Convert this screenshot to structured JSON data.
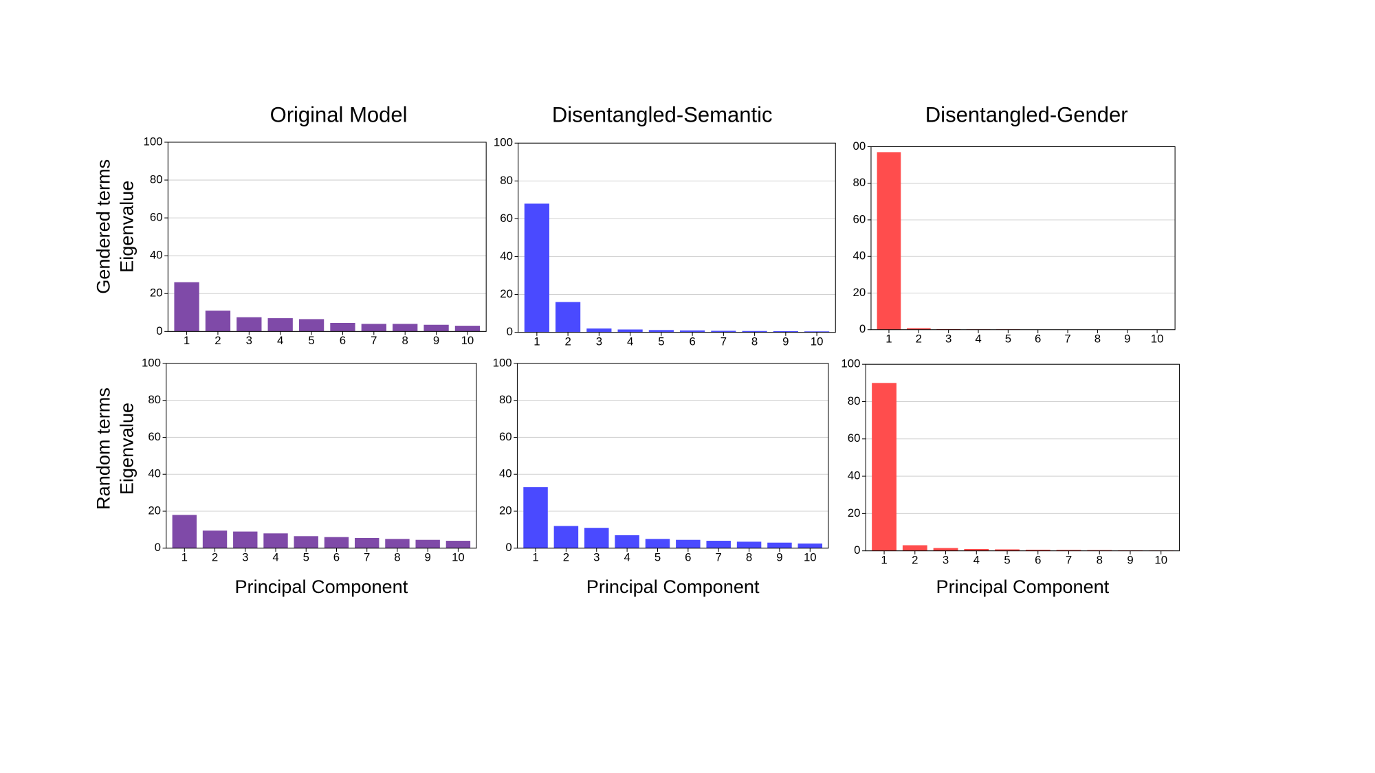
{
  "chart_data": [
    {
      "type": "bar",
      "title": "Original Model",
      "row_label": "Gendered terms",
      "y_label": "Eigenvalue",
      "categories": [
        "1",
        "2",
        "3",
        "4",
        "5",
        "6",
        "7",
        "8",
        "9",
        "10"
      ],
      "values": [
        26,
        11,
        7.5,
        7,
        6.5,
        4.5,
        4,
        4,
        3.5,
        3
      ],
      "color": "#7f4aa8",
      "ylim": [
        0,
        100
      ],
      "yticks": [
        0,
        20,
        40,
        60,
        80,
        100
      ],
      "grid": true
    },
    {
      "type": "bar",
      "title": "Disentangled-Semantic",
      "categories": [
        "1",
        "2",
        "3",
        "4",
        "5",
        "6",
        "7",
        "8",
        "9",
        "10"
      ],
      "values": [
        68,
        16,
        2,
        1.5,
        1.2,
        1,
        0.8,
        0.7,
        0.6,
        0.5
      ],
      "color": "#4a4aff",
      "ylim": [
        0,
        100
      ],
      "yticks": [
        0,
        20,
        40,
        60,
        80,
        100
      ],
      "grid": true
    },
    {
      "type": "bar",
      "title": "Disentangled-Gender",
      "categories": [
        "1",
        "2",
        "3",
        "4",
        "5",
        "6",
        "7",
        "8",
        "9",
        "10"
      ],
      "values": [
        97,
        0.8,
        0.3,
        0.2,
        0.2,
        0.1,
        0.1,
        0.1,
        0.1,
        0.1
      ],
      "color": "#ff4d4d",
      "ylim": [
        0,
        100
      ],
      "yticks": [
        0,
        20,
        40,
        60,
        80,
        {
          "value": 100,
          "label": "00"
        }
      ],
      "grid": true
    },
    {
      "type": "bar",
      "row_label": "Random terms",
      "y_label": "Eigenvalue",
      "x_label": "Principal Component",
      "categories": [
        "1",
        "2",
        "3",
        "4",
        "5",
        "6",
        "7",
        "8",
        "9",
        "10"
      ],
      "values": [
        18,
        9.5,
        9,
        8,
        6.5,
        6,
        5.5,
        5,
        4.5,
        4
      ],
      "color": "#7f4aa8",
      "ylim": [
        0,
        100
      ],
      "yticks": [
        0,
        20,
        40,
        60,
        80,
        100
      ],
      "grid": true
    },
    {
      "type": "bar",
      "x_label": "Principal Component",
      "categories": [
        "1",
        "2",
        "3",
        "4",
        "5",
        "6",
        "7",
        "8",
        "9",
        "10"
      ],
      "values": [
        33,
        12,
        11,
        7,
        5,
        4.5,
        4,
        3.5,
        3,
        2.5
      ],
      "color": "#4a4aff",
      "ylim": [
        0,
        100
      ],
      "yticks": [
        0,
        20,
        40,
        60,
        80,
        100
      ],
      "grid": true
    },
    {
      "type": "bar",
      "x_label": "Principal Component",
      "categories": [
        "1",
        "2",
        "3",
        "4",
        "5",
        "6",
        "7",
        "8",
        "9",
        "10"
      ],
      "values": [
        90,
        3,
        1.5,
        1,
        0.8,
        0.6,
        0.5,
        0.4,
        0.3,
        0.2
      ],
      "color": "#ff4d4d",
      "ylim": [
        0,
        100
      ],
      "yticks": [
        0,
        20,
        40,
        60,
        80,
        100
      ],
      "grid": true
    }
  ]
}
